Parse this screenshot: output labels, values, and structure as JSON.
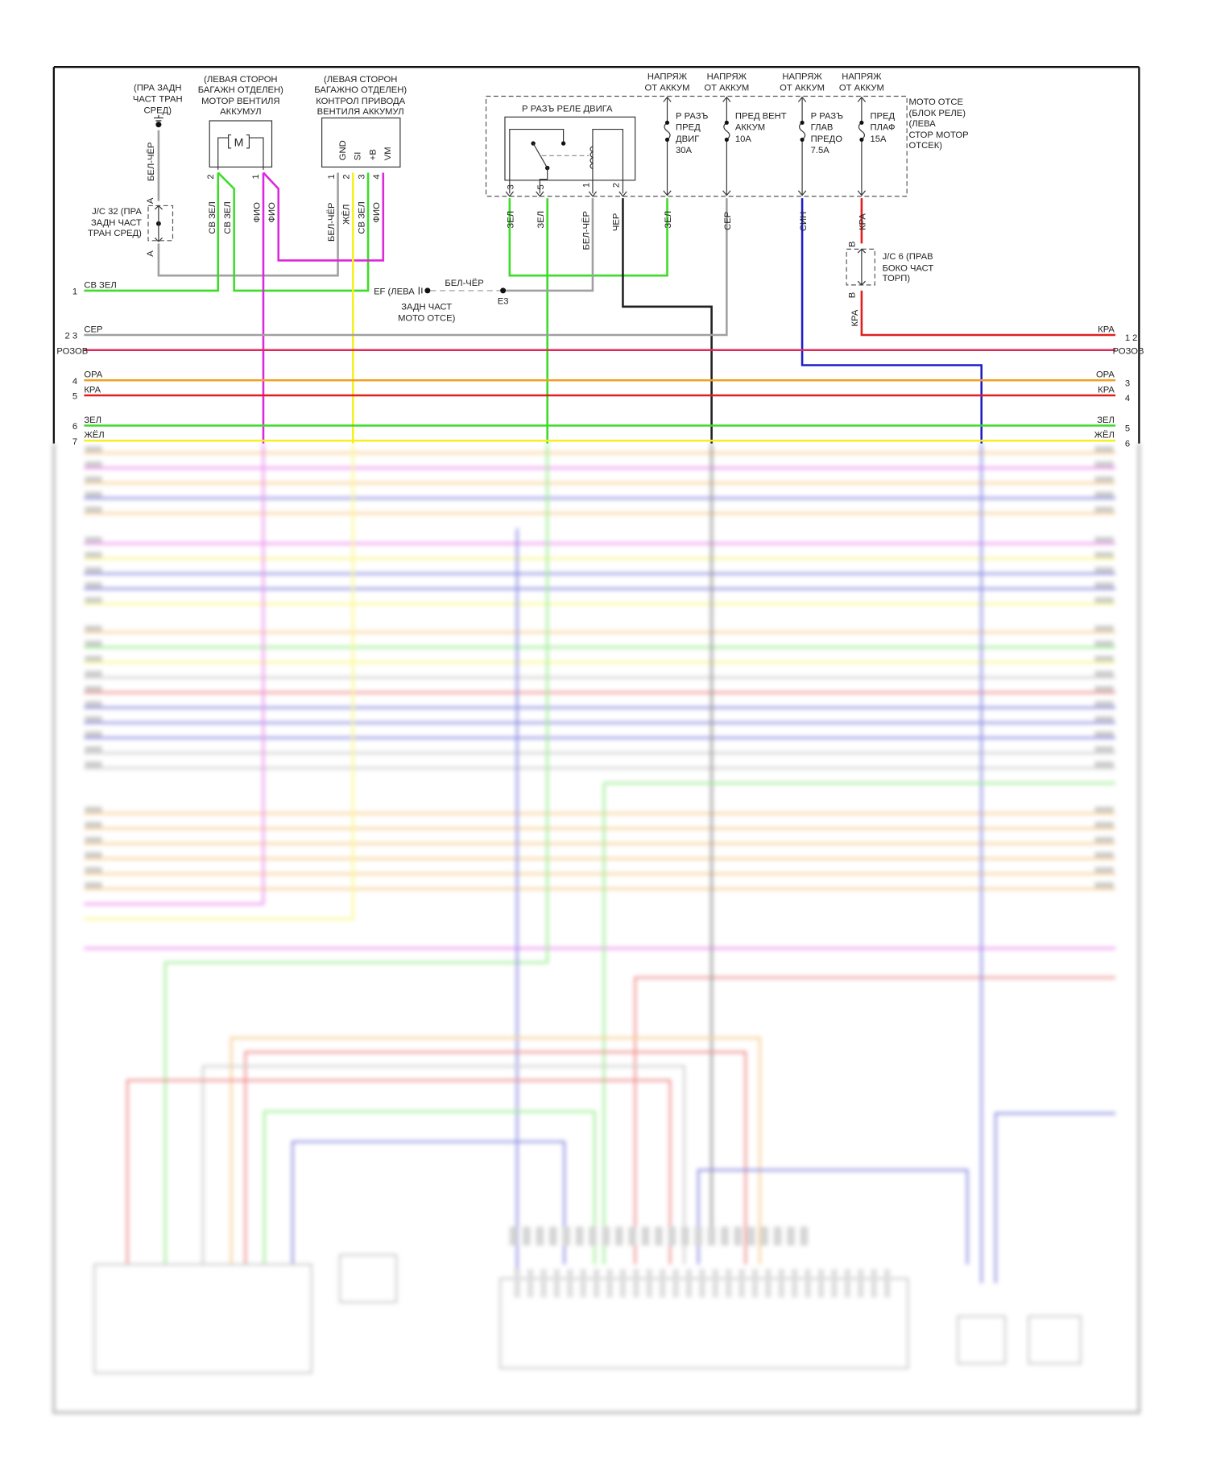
{
  "colors": {
    "green": "#3cdc28",
    "magenta": "#dc28dc",
    "yellow": "#f5f01e",
    "gray": "#a0a0a0",
    "black": "#222222",
    "blue": "#1e1ec8",
    "red": "#e01e1e",
    "pink": "#e0285a",
    "orange": "#f0a028"
  },
  "ground_pra": {
    "lines": [
      "(ПРА ЗАДН",
      "ЧАСТ ТРАН",
      "СРЕД)"
    ],
    "wire": "БЕЛ-ЧЁР",
    "icon": "ground-icon"
  },
  "jc32": {
    "lines": [
      "J/C 32 (ПРА",
      "ЗАДН ЧАСТ",
      "ТРАН СРЕД)"
    ],
    "pin_top": "A",
    "pin_bottom": "A"
  },
  "motor": {
    "lines": [
      "(ЛЕВАЯ СТОРОН",
      "БАГАЖН ОТДЕЛЕН)",
      "МОТОР ВЕНТИЛЯ",
      "АККУМУЛ"
    ],
    "symbol": "M",
    "pins": [
      "2",
      "1"
    ],
    "wires": [
      "СВ ЗЕЛ",
      "СВ ЗЕЛ",
      "ФИО",
      "ФИО"
    ]
  },
  "control": {
    "lines": [
      "(ЛЕВАЯ СТОРОН",
      "БАГАЖНО ОТДЕЛЕН)",
      "КОНТРОЛ ПРИВОДА",
      "ВЕНТИЛЯ АККУМУЛ"
    ],
    "pin_names": [
      "GND",
      "SI",
      "+B",
      "VM"
    ],
    "pins": [
      "1",
      "2",
      "3",
      "4"
    ],
    "wires": [
      "БЕЛ-ЧЁР",
      "ЖЁЛ",
      "СВ ЗЕЛ",
      "ФИО"
    ]
  },
  "ef_ground": {
    "label": "EF (ЛЕВА",
    "lines": [
      "ЗАДН ЧАСТ",
      "МОТО ОТСЕ)"
    ],
    "wire": "БЕЛ-ЧЁР",
    "splice": "E3"
  },
  "relay_block": {
    "lines": [
      "МОТО ОТСЕ",
      "(БЛОК РЕЛЕ)",
      "(ЛЕВА",
      "СТОР МОТОР",
      "ОТСЕК)"
    ],
    "relay": {
      "title": "Р РАЗЪ РЕЛЕ ДВИГА",
      "pins": [
        "3",
        "5",
        "1",
        "2"
      ],
      "wires": [
        "ЗЕЛ",
        "ЗЕЛ",
        "БЕЛ-ЧЁР",
        "ЧЕР"
      ]
    },
    "fuses": [
      {
        "supply": [
          "НАПРЯЖ",
          "ОТ АККУМ"
        ],
        "lines": [
          "Р РАЗЪ",
          "ПРЕД",
          "ДВИГ",
          "30А"
        ],
        "wire": "ЗЕЛ"
      },
      {
        "supply": [
          "НАПРЯЖ",
          "ОТ АККУМ"
        ],
        "lines": [
          "ПРЕД ВЕНТ",
          "АККУМ",
          "10А"
        ],
        "wire": "СЕР"
      },
      {
        "supply": [
          "НАПРЯЖ",
          "ОТ АККУМ"
        ],
        "lines": [
          "Р РАЗЪ",
          "ГЛАВ",
          "ПРЕДО",
          "7.5А"
        ],
        "wire": "СИН"
      },
      {
        "supply": [
          "НАПРЯЖ",
          "ОТ АККУМ"
        ],
        "lines": [
          "ПРЕД",
          "ПЛАФ",
          "15А"
        ],
        "wire": "КРА"
      }
    ]
  },
  "jc6": {
    "lines": [
      "J/C 6 (ПРАВ",
      "БОКО ЧАСТ",
      "ТОРП)"
    ],
    "pin_top": "B",
    "pin_bottom": "B",
    "wire_bottom": "КРА"
  },
  "bus": [
    {
      "num_left": "1",
      "label_left": "СВ ЗЕЛ",
      "color": "green"
    },
    {
      "num_left": "2 3",
      "label_left": "СЕР",
      "color": "gray"
    },
    {
      "num_right": "1 2",
      "label_right": "КРА",
      "color": "red"
    },
    {
      "label_left": "РОЗОВ",
      "label_right": "РОЗОВ",
      "color": "pink"
    },
    {
      "num_left": "4",
      "label_left": "ОРА",
      "num_right": "3",
      "label_right": "ОРА",
      "color": "orange"
    },
    {
      "num_left": "5",
      "label_left": "КРА",
      "num_right": "4",
      "label_right": "КРА",
      "color": "red"
    },
    {
      "num_left": "6",
      "label_left": "ЗЕЛ",
      "num_right": "5",
      "label_right": "ЗЕЛ",
      "color": "green"
    },
    {
      "num_left": "7",
      "label_left": "ЖЁЛ",
      "num_right": "6",
      "label_right": "ЖЁЛ",
      "color": "yellow"
    }
  ]
}
